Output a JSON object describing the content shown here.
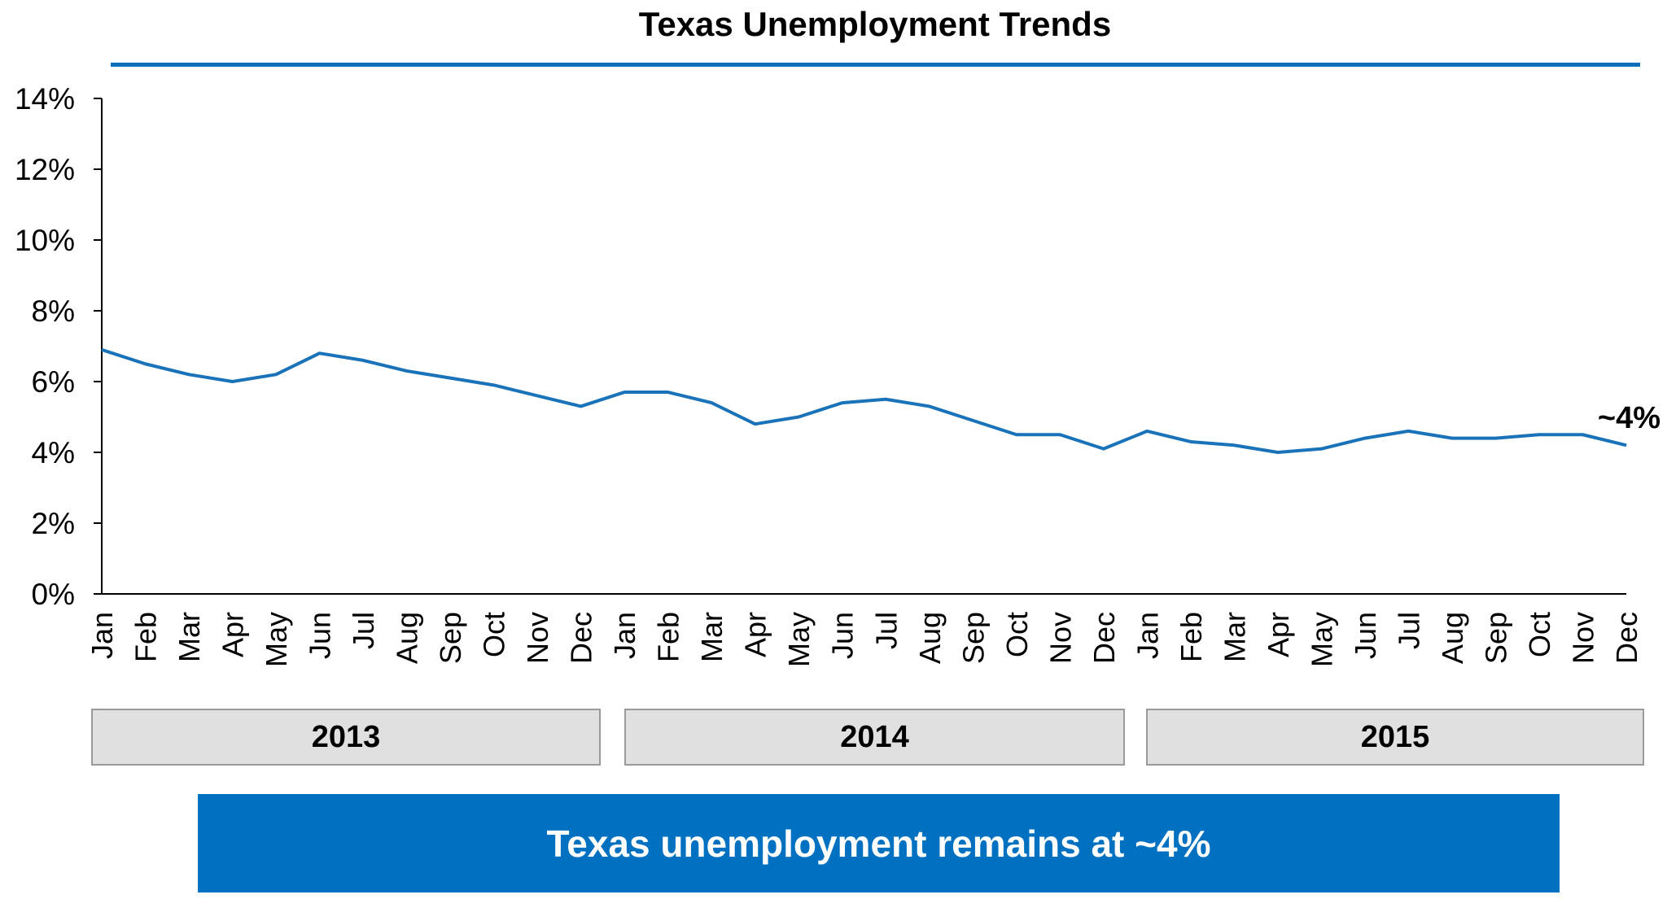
{
  "chart_data": {
    "type": "line",
    "title": "Texas Unemployment Trends",
    "x": [
      "Jan",
      "Feb",
      "Mar",
      "Apr",
      "May",
      "Jun",
      "Jul",
      "Aug",
      "Sep",
      "Oct",
      "Nov",
      "Dec",
      "Jan",
      "Feb",
      "Mar",
      "Apr",
      "May",
      "Jun",
      "Jul",
      "Aug",
      "Sep",
      "Oct",
      "Nov",
      "Dec",
      "Jan",
      "Feb",
      "Mar",
      "Apr",
      "May",
      "Jun",
      "Jul",
      "Aug",
      "Sep",
      "Oct",
      "Nov",
      "Dec"
    ],
    "year_groups": [
      "2013",
      "2014",
      "2015"
    ],
    "series": [
      {
        "values": [
          6.9,
          6.5,
          6.2,
          6.0,
          6.2,
          6.8,
          6.6,
          6.3,
          6.1,
          5.9,
          5.6,
          5.3,
          5.7,
          5.7,
          5.4,
          4.8,
          5.0,
          5.4,
          5.5,
          5.3,
          4.9,
          4.5,
          4.5,
          4.1,
          4.6,
          4.3,
          4.2,
          4.0,
          4.1,
          4.4,
          4.6,
          4.4,
          4.4,
          4.5,
          4.5,
          4.2
        ]
      }
    ],
    "ylim": [
      0,
      14
    ],
    "yticks": [
      "0%",
      "2%",
      "4%",
      "6%",
      "8%",
      "10%",
      "12%",
      "14%"
    ],
    "annotation": "~4%",
    "grid": false,
    "line_color": "#1a72b8"
  },
  "banner": {
    "text": "Texas unemployment remains at ~4%",
    "color": "#0070c0"
  }
}
